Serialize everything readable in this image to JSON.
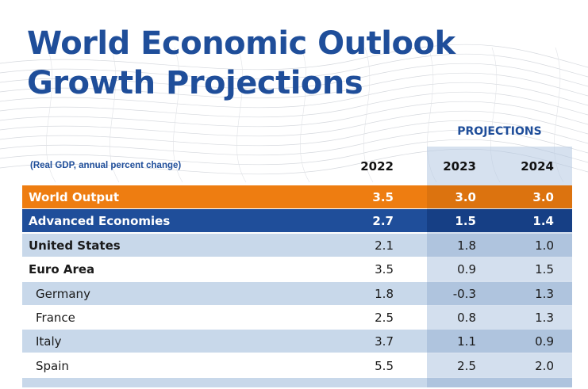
{
  "title_line1": "World Economic Outlook",
  "title_line2": "Growth Projections",
  "projections_label": "PROJECTIONS",
  "subtitle": "(Real GDP, annual percent change)",
  "years": [
    "2022",
    "2023",
    "2024"
  ],
  "rows": [
    {
      "name": "World Output",
      "v2022": "3.5",
      "v2023": "3.0",
      "v2024": "3.0"
    },
    {
      "name": "Advanced Economies",
      "v2022": "2.7",
      "v2023": "1.5",
      "v2024": "1.4"
    },
    {
      "name": "United States",
      "v2022": "2.1",
      "v2023": "1.8",
      "v2024": "1.0"
    },
    {
      "name": "Euro Area",
      "v2022": "3.5",
      "v2023": "0.9",
      "v2024": "1.5"
    },
    {
      "name": "Germany",
      "v2022": "1.8",
      "v2023": "-0.3",
      "v2024": "1.3"
    },
    {
      "name": "France",
      "v2022": "2.5",
      "v2023": "0.8",
      "v2024": "1.3"
    },
    {
      "name": "Italy",
      "v2022": "3.7",
      "v2023": "1.1",
      "v2024": "0.9"
    },
    {
      "name": "Spain",
      "v2022": "5.5",
      "v2023": "2.5",
      "v2024": "2.0"
    }
  ],
  "colors": {
    "title": "#1f4e9a",
    "world_output_row": "#ee7d11",
    "advanced_economies_row": "#1f4e9a",
    "light_row": "#c8d8ea"
  }
}
